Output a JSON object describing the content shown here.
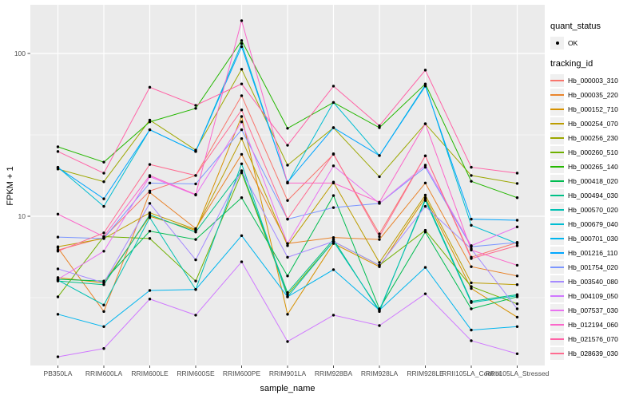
{
  "axes": {
    "x_label": "sample_name",
    "y_label": "FPKM + 1",
    "y_ticks": [
      {
        "value": 100,
        "label": "100"
      },
      {
        "value": 10,
        "label": "10"
      }
    ]
  },
  "legend": {
    "quant_status": {
      "title": "quant_status",
      "items": [
        {
          "label": "OK"
        }
      ]
    },
    "tracking_id": {
      "title": "tracking_id"
    }
  },
  "colors": {
    "panel_background": "#EBEBEB",
    "gridline": "#FFFFFF",
    "point": "#000000",
    "tick_label": "#4D4D4D",
    "axis_tick": "#333333",
    "legend_key_background": "#F0F0F0"
  },
  "chart_data": {
    "type": "line",
    "title": "",
    "xlabel": "sample_name",
    "ylabel": "FPKM + 1",
    "y_scale": "log10",
    "ylim": [
      1.15,
      200
    ],
    "y_major_gridlines": [
      10,
      100
    ],
    "y_minor_gridlines": [
      3.162,
      31.62
    ],
    "legend_position": "right",
    "quant_status_all": "OK",
    "categories": [
      "PB350LA",
      "RRIM600LA",
      "RRIM600LE",
      "RRIM600SE",
      "RRIM600PE",
      "RRIM901LA",
      "RRIM928BA",
      "RRIM928LA",
      "RRIM928LE",
      "RRII105LA_Control",
      "RRII105LA_Stressed"
    ],
    "series": [
      {
        "name": "Hb_000003_310",
        "color": "#F8766D",
        "quant_status": "OK",
        "values": [
          6.2,
          7.4,
          14.3,
          17.8,
          55,
          12.5,
          24,
          7.8,
          23.5,
          5.6,
          6.9
        ]
      },
      {
        "name": "Hb_000035_220",
        "color": "#E9842C",
        "quant_status": "OK",
        "values": [
          6.4,
          2.6,
          14.0,
          8.4,
          24,
          6.8,
          7.4,
          7.2,
          16,
          4.9,
          4.3
        ]
      },
      {
        "name": "Hb_000152_710",
        "color": "#D69100",
        "quant_status": "OK",
        "values": [
          4.2,
          3.9,
          10.0,
          8.2,
          41,
          2.5,
          6.8,
          4.9,
          13,
          3.6,
          2.4
        ]
      },
      {
        "name": "Hb_000254_070",
        "color": "#BC9D00",
        "quant_status": "OK",
        "values": [
          6.5,
          7.3,
          10.5,
          8.3,
          30,
          6.6,
          16.2,
          5.2,
          13.5,
          3.9,
          3.8
        ]
      },
      {
        "name": "Hb_000256_230",
        "color": "#9CA700",
        "quant_status": "OK",
        "values": [
          19.5,
          16.3,
          39,
          25.5,
          80,
          20.6,
          35,
          17.5,
          37,
          17.8,
          15.9
        ]
      },
      {
        "name": "Hb_000260_510",
        "color": "#6FB000",
        "quant_status": "OK",
        "values": [
          3.2,
          7.5,
          7.3,
          4.0,
          18.5,
          3.3,
          7.0,
          5.0,
          8.2,
          3.7,
          2.9
        ]
      },
      {
        "name": "Hb_000265_140",
        "color": "#24B700",
        "quant_status": "OK",
        "values": [
          26.7,
          21.5,
          38,
          46,
          120,
          34.7,
          50,
          35,
          65,
          16.4,
          13
        ]
      },
      {
        "name": "Hb_000418_020",
        "color": "#00BC51",
        "quant_status": "OK",
        "values": [
          4.1,
          4.0,
          8.1,
          7.2,
          13,
          4.3,
          13.4,
          2.7,
          8.0,
          2.7,
          3.2
        ]
      },
      {
        "name": "Hb_000494_030",
        "color": "#00C087",
        "quant_status": "OK",
        "values": [
          4.0,
          3.8,
          10.2,
          8.0,
          19,
          3.4,
          7.2,
          2.6,
          12.8,
          3.0,
          3.3
        ]
      },
      {
        "name": "Hb_000570_020",
        "color": "#00C0B2",
        "quant_status": "OK",
        "values": [
          4.05,
          2.85,
          9.8,
          3.55,
          21,
          3.2,
          7.0,
          2.65,
          12.5,
          2.95,
          3.25
        ]
      },
      {
        "name": "Hb_000679_040",
        "color": "#00BDD2",
        "quant_status": "OK",
        "values": [
          20,
          11.5,
          34,
          25,
          115,
          16,
          50,
          23.6,
          64,
          8.8,
          6.8
        ]
      },
      {
        "name": "Hb_000701_030",
        "color": "#00B5EE",
        "quant_status": "OK",
        "values": [
          2.5,
          2.1,
          3.5,
          3.55,
          7.6,
          3.2,
          4.7,
          2.65,
          4.85,
          2.0,
          2.1
        ]
      },
      {
        "name": "Hb_001216_110",
        "color": "#00A6FF",
        "quant_status": "OK",
        "values": [
          19.9,
          12.8,
          34,
          25,
          110,
          16.2,
          35,
          23.6,
          63,
          9.6,
          9.45
        ]
      },
      {
        "name": "Hb_001754_020",
        "color": "#7C96FF",
        "quant_status": "OK",
        "values": [
          7.45,
          7.3,
          16,
          15.8,
          34,
          9.6,
          11.3,
          12,
          20,
          6.5,
          6.9
        ]
      },
      {
        "name": "Hb_003540_080",
        "color": "#A58AFF",
        "quant_status": "OK",
        "values": [
          4.75,
          3.9,
          12,
          5.4,
          19,
          5.6,
          7.0,
          5.0,
          11.5,
          6.3,
          2.7
        ]
      },
      {
        "name": "Hb_004109_050",
        "color": "#CF78FF",
        "quant_status": "OK",
        "values": [
          1.37,
          1.54,
          3.1,
          2.47,
          5.25,
          1.7,
          2.47,
          2.13,
          3.34,
          1.72,
          1.43
        ]
      },
      {
        "name": "Hb_007537_030",
        "color": "#E973F1",
        "quant_status": "OK",
        "values": [
          4.1,
          6.1,
          17.5,
          13.5,
          38,
          6.8,
          20.4,
          12,
          20.6,
          6.6,
          8.6
        ]
      },
      {
        "name": "Hb_012194_060",
        "color": "#FB67CA",
        "quant_status": "OK",
        "values": [
          10.3,
          7.5,
          17.8,
          13.6,
          159,
          16,
          16,
          12.2,
          37,
          6.2,
          5.0
        ]
      },
      {
        "name": "Hb_021576_070",
        "color": "#FF63A6",
        "quant_status": "OK",
        "values": [
          25,
          18.4,
          62,
          48,
          65,
          27.3,
          63,
          36,
          79,
          20,
          18.4
        ]
      },
      {
        "name": "Hb_028639_030",
        "color": "#FF6C91",
        "quant_status": "OK",
        "values": [
          6.1,
          7.9,
          20.8,
          17.8,
          45,
          9.6,
          24.2,
          7.5,
          23.5,
          5.5,
          6.6
        ]
      }
    ]
  }
}
